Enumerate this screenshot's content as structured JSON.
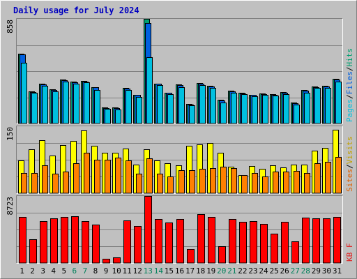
{
  "chart_data": {
    "type": "bar",
    "title": "Daily usage for July 2024",
    "categories": [
      "1",
      "2",
      "3",
      "4",
      "5",
      "6",
      "7",
      "8",
      "9",
      "10",
      "11",
      "12",
      "13",
      "14",
      "15",
      "16",
      "17",
      "18",
      "19",
      "20",
      "21",
      "22",
      "23",
      "24",
      "25",
      "26",
      "27",
      "28",
      "29",
      "30",
      "31"
    ],
    "weekend_days": [
      "6",
      "7",
      "13",
      "14",
      "20",
      "21",
      "27",
      "28"
    ],
    "panels": [
      {
        "id": "top",
        "ymax_label": "858",
        "ylim": [
          0,
          858
        ],
        "legend": [
          {
            "name": "Pages",
            "color": "#00c0e0"
          },
          {
            "sep": "/",
            "color": "#000000"
          },
          {
            "name": "Files",
            "color": "#0060e0"
          },
          {
            "sep": "/",
            "color": "#000000"
          },
          {
            "name": "Hits",
            "color": "#00a070"
          }
        ],
        "series": [
          {
            "name": "Hits",
            "color": "#00a070",
            "values": [
              571,
              262,
              327,
              278,
              359,
              341,
              351,
              297,
              130,
              131,
              290,
              236,
              858,
              327,
              254,
              320,
              159,
              332,
              310,
              192,
              270,
              252,
              237,
              245,
              240,
              258,
              171,
              275,
              303,
              308,
              365
            ]
          },
          {
            "name": "Files",
            "color": "#0060e0",
            "values": [
              568,
              258,
              323,
              273,
              354,
              335,
              346,
              295,
              126,
              126,
              285,
              232,
              826,
              325,
              250,
              315,
              155,
              328,
              305,
              188,
              265,
              248,
              232,
              240,
              236,
              254,
              167,
              270,
              298,
              303,
              360
            ]
          },
          {
            "name": "Pages",
            "color": "#00c0e0",
            "values": [
              495,
              250,
              308,
              262,
              342,
              326,
              336,
              275,
              118,
              113,
              272,
              215,
              542,
              312,
              238,
              296,
              148,
              315,
              290,
              174,
              250,
              238,
              224,
              232,
              226,
              242,
              154,
              252,
              290,
              294,
              345
            ]
          }
        ]
      },
      {
        "id": "middle",
        "ymax_label": "150",
        "ylim": [
          0,
          150
        ],
        "legend": [
          {
            "name": "Sites",
            "color": "#e06000"
          },
          {
            "sep": "/",
            "color": "#000000"
          },
          {
            "name": "Visits",
            "color": "#c0a000"
          }
        ],
        "series": [
          {
            "name": "Visits",
            "color": "#ffff00",
            "values": [
              73,
              98,
              118,
              85,
              108,
              117,
              141,
              106,
              90,
              90,
              100,
              64,
              98,
              73,
              67,
              62,
              106,
              110,
              113,
              90,
              60,
              40,
              61,
              55,
              62,
              58,
              64,
              64,
              96,
              101,
              142
            ]
          },
          {
            "name": "Sites",
            "color": "#ff8000",
            "values": [
              46,
              46,
              62,
              43,
              48,
              67,
              91,
              75,
              75,
              80,
              74,
              43,
              78,
              43,
              38,
              51,
              51,
              55,
              57,
              60,
              57,
              40,
              45,
              38,
              48,
              48,
              50,
              45,
              67,
              70,
              82
            ]
          }
        ]
      },
      {
        "id": "bottom",
        "ymax_label": "8723",
        "ylim": [
          0,
          8723
        ],
        "legend": [
          {
            "name": "KB F",
            "color": "#e02020"
          }
        ],
        "series": [
          {
            "name": "KB F",
            "color": "#ff0000",
            "values": [
              6000,
              3068,
              5430,
              5785,
              6005,
              6110,
              5430,
              5000,
              500,
              707,
              5570,
              4860,
              8723,
              5695,
              5280,
              5740,
              1825,
              6380,
              5980,
              2210,
              5710,
              5355,
              5430,
              5075,
              3850,
              5350,
              2850,
              5885,
              5780,
              5780,
              6015
            ]
          }
        ]
      }
    ]
  }
}
